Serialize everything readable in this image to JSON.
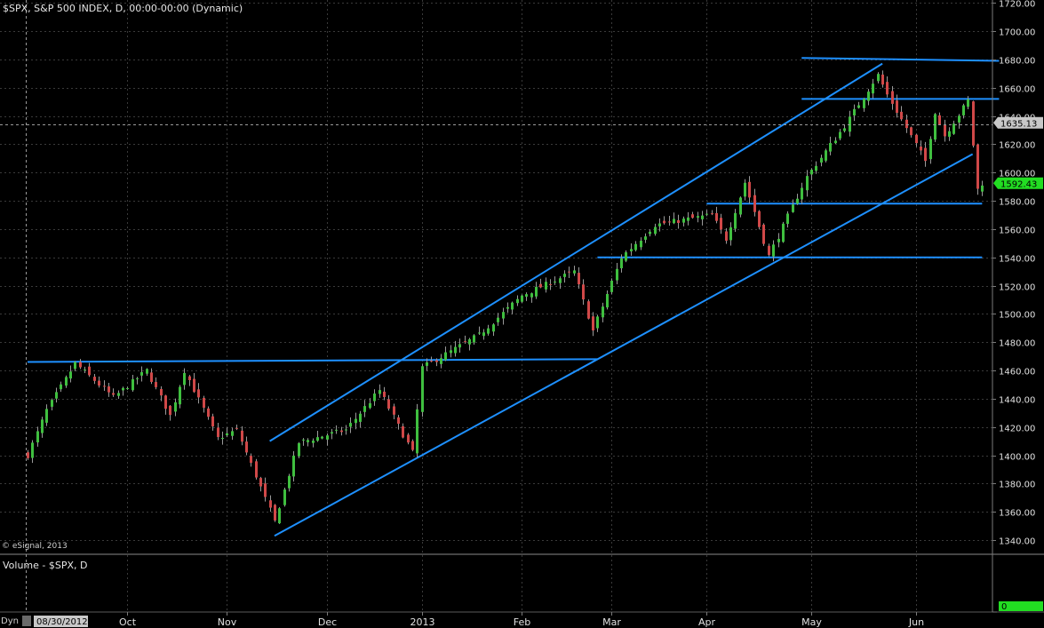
{
  "header": {
    "title": "$SPX, S&P 500 INDEX, D, 00:00-00:00 (Dynamic)",
    "copyright": "© eSignal, 2013"
  },
  "volume_panel": {
    "title": "Volume - $SPX, D",
    "value": "0"
  },
  "time_axis": {
    "mode_label": "Dyn",
    "cursor_date": "08/30/2012",
    "months": [
      {
        "label": "Oct",
        "date": "2012-10-01"
      },
      {
        "label": "Nov",
        "date": "2012-11-01"
      },
      {
        "label": "Dec",
        "date": "2012-12-01"
      },
      {
        "label": "2013",
        "date": "2013-01-02"
      },
      {
        "label": "Feb",
        "date": "2013-02-01"
      },
      {
        "label": "Mar",
        "date": "2013-03-01"
      },
      {
        "label": "Apr",
        "date": "2013-04-01"
      },
      {
        "label": "May",
        "date": "2013-05-01"
      },
      {
        "label": "Jun",
        "date": "2013-06-03"
      }
    ]
  },
  "colors": {
    "background": "#000000",
    "grid": "#3a3a3a",
    "up_candle": "#3fbf3f",
    "down_candle": "#d04848",
    "trendline": "#1e90ff",
    "last_price_badge": "#22dd22",
    "crosshair_badge": "#c8c8c8",
    "separator": "#8a8a8a"
  },
  "chart_data": {
    "type": "candlestick",
    "title": "$SPX, S&P 500 INDEX, D, 00:00-00:00 (Dynamic)",
    "ylim": [
      1330,
      1722
    ],
    "yticks": [
      "1340.00",
      "1360.00",
      "1380.00",
      "1400.00",
      "1420.00",
      "1440.00",
      "1460.00",
      "1480.00",
      "1500.00",
      "1520.00",
      "1540.00",
      "1560.00",
      "1580.00",
      "1600.00",
      "1620.00",
      "1640.00",
      "1660.00",
      "1680.00",
      "1700.00",
      "1720.00"
    ],
    "last_price": "1592.43",
    "crosshair_price": "1635.13",
    "grid": true,
    "series": [
      {
        "name": "$SPX",
        "close_path": [
          {
            "date": "2012-08-30",
            "close": 1400
          },
          {
            "date": "2012-09-06",
            "close": 1432
          },
          {
            "date": "2012-09-14",
            "close": 1465
          },
          {
            "date": "2012-09-26",
            "close": 1441
          },
          {
            "date": "2012-10-05",
            "close": 1460
          },
          {
            "date": "2012-10-12",
            "close": 1428
          },
          {
            "date": "2012-10-17",
            "close": 1460
          },
          {
            "date": "2012-10-26",
            "close": 1412
          },
          {
            "date": "2012-11-05",
            "close": 1418
          },
          {
            "date": "2012-11-15",
            "close": 1353
          },
          {
            "date": "2012-11-23",
            "close": 1409
          },
          {
            "date": "2012-12-07",
            "close": 1418
          },
          {
            "date": "2012-12-18",
            "close": 1446
          },
          {
            "date": "2012-12-28",
            "close": 1402
          },
          {
            "date": "2013-01-02",
            "close": 1462
          },
          {
            "date": "2013-01-18",
            "close": 1485
          },
          {
            "date": "2013-02-01",
            "close": 1513
          },
          {
            "date": "2013-02-19",
            "close": 1530
          },
          {
            "date": "2013-02-25",
            "close": 1488
          },
          {
            "date": "2013-03-05",
            "close": 1540
          },
          {
            "date": "2013-03-14",
            "close": 1563
          },
          {
            "date": "2013-04-02",
            "close": 1570
          },
          {
            "date": "2013-04-05",
            "close": 1553
          },
          {
            "date": "2013-04-11",
            "close": 1593
          },
          {
            "date": "2013-04-18",
            "close": 1541
          },
          {
            "date": "2013-04-30",
            "close": 1597
          },
          {
            "date": "2013-05-10",
            "close": 1633
          },
          {
            "date": "2013-05-21",
            "close": 1669
          },
          {
            "date": "2013-05-23",
            "close": 1655
          },
          {
            "date": "2013-06-05",
            "close": 1608
          },
          {
            "date": "2013-06-07",
            "close": 1643
          },
          {
            "date": "2013-06-11",
            "close": 1626
          },
          {
            "date": "2013-06-18",
            "close": 1651
          },
          {
            "date": "2013-06-20",
            "close": 1588
          },
          {
            "date": "2013-06-21",
            "close": 1592.43
          }
        ]
      }
    ],
    "trendlines": [
      {
        "from": {
          "date": "2012-08-30",
          "price": 1466
        },
        "to": {
          "date": "2013-02-26",
          "price": 1468
        }
      },
      {
        "from": {
          "date": "2012-11-14",
          "price": 1410
        },
        "to": {
          "date": "2013-05-22",
          "price": 1677
        }
      },
      {
        "from": {
          "date": "2012-11-15",
          "price": 1343
        },
        "to": {
          "date": "2013-06-19",
          "price": 1613
        }
      },
      {
        "from": {
          "date": "2013-02-26",
          "price": 1540
        },
        "to": {
          "date": "2013-06-21",
          "price": 1540
        }
      },
      {
        "from": {
          "date": "2013-04-01",
          "price": 1578
        },
        "to": {
          "date": "2013-06-21",
          "price": 1578
        }
      },
      {
        "from": {
          "date": "2013-04-29",
          "price": 1652
        },
        "to": {
          "date": "2013-06-26",
          "price": 1652
        }
      },
      {
        "from": {
          "date": "2013-04-29",
          "price": 1681
        },
        "to": {
          "date": "2013-06-26",
          "price": 1679
        }
      }
    ]
  }
}
